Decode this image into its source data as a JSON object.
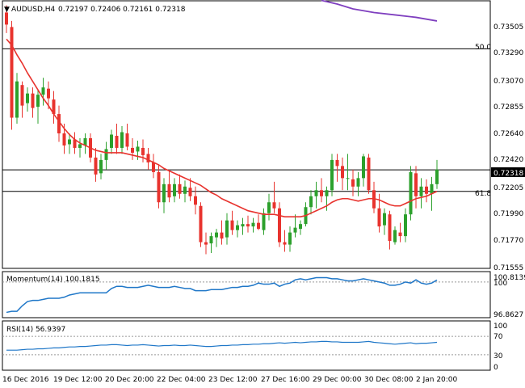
{
  "header": {
    "symbol": "AUDUSD,H4",
    "ohlc": "0.72197 0.72406 0.72161 0.72318"
  },
  "colors": {
    "up": "#2ca02c",
    "down": "#e8332e",
    "ma_short": "#e8332e",
    "ma_long": "#7f3fbf",
    "indicator_line": "#1f77c8",
    "frame": "#000000",
    "grid_dashed": "#999999"
  },
  "price_axis": {
    "labels": [
      "0.73505",
      "0.73290",
      "0.73070",
      "0.72855",
      "0.72640",
      "0.72420",
      "0.72205",
      "0.71990",
      "0.71770",
      "0.71555"
    ],
    "current_price": "0.72318"
  },
  "fib_levels": [
    {
      "label": "50.0",
      "value": 0.7332
    },
    {
      "label": "61.8",
      "value": 0.7214
    }
  ],
  "horizontal_line_value": 0.72318,
  "momentum": {
    "title": "Momentum(14) 100.1815",
    "labels": [
      "100.8139",
      "100",
      "96.8627"
    ],
    "level_100": 100
  },
  "rsi": {
    "title": "RSI(14) 56.9397",
    "labels": [
      "100",
      "70",
      "30",
      "0"
    ]
  },
  "time_axis": {
    "labels": [
      "16 Dec 2016",
      "19 Dec 12:00",
      "20 Dec 20:00",
      "22 Dec 04:00",
      "23 Dec 12:00",
      "27 Dec 16:00",
      "29 Dec 00:00",
      "30 Dec 08:00",
      "2 Jan 20:00"
    ]
  },
  "chart_data": {
    "type": "candlestick",
    "ylim": [
      0.7151,
      0.7371
    ],
    "candles": [
      [
        0.7362,
        0.7368,
        0.7345,
        0.7352
      ],
      [
        0.735,
        0.7355,
        0.7265,
        0.7275
      ],
      [
        0.7275,
        0.7312,
        0.727,
        0.7305
      ],
      [
        0.7302,
        0.7305,
        0.7275,
        0.7285
      ],
      [
        0.7287,
        0.73,
        0.728,
        0.7295
      ],
      [
        0.7295,
        0.73,
        0.7275,
        0.7283
      ],
      [
        0.7284,
        0.7298,
        0.727,
        0.7294
      ],
      [
        0.7294,
        0.7308,
        0.7285,
        0.73
      ],
      [
        0.7299,
        0.7305,
        0.7282,
        0.7291
      ],
      [
        0.729,
        0.7297,
        0.727,
        0.7278
      ],
      [
        0.7278,
        0.7285,
        0.7255,
        0.7262
      ],
      [
        0.7262,
        0.727,
        0.7245,
        0.7252
      ],
      [
        0.7253,
        0.7262,
        0.7245,
        0.7257
      ],
      [
        0.7257,
        0.7263,
        0.7245,
        0.725
      ],
      [
        0.725,
        0.7258,
        0.7242,
        0.7253
      ],
      [
        0.7252,
        0.7262,
        0.7245,
        0.7258
      ],
      [
        0.7258,
        0.7262,
        0.7238,
        0.7242
      ],
      [
        0.7242,
        0.725,
        0.7222,
        0.7228
      ],
      [
        0.7229,
        0.7245,
        0.7224,
        0.724
      ],
      [
        0.724,
        0.7255,
        0.7232,
        0.7249
      ],
      [
        0.725,
        0.7265,
        0.7245,
        0.7261
      ],
      [
        0.726,
        0.727,
        0.7245,
        0.725
      ],
      [
        0.725,
        0.7268,
        0.7245,
        0.7263
      ],
      [
        0.7262,
        0.727,
        0.7248,
        0.7251
      ],
      [
        0.725,
        0.7258,
        0.724,
        0.7246
      ],
      [
        0.7247,
        0.7256,
        0.724,
        0.7251
      ],
      [
        0.725,
        0.7257,
        0.7238,
        0.7244
      ],
      [
        0.7245,
        0.725,
        0.7232,
        0.7238
      ],
      [
        0.7238,
        0.7245,
        0.7225,
        0.723
      ],
      [
        0.723,
        0.7236,
        0.72,
        0.7205
      ],
      [
        0.7205,
        0.7225,
        0.7196,
        0.722
      ],
      [
        0.722,
        0.7232,
        0.7205,
        0.7209
      ],
      [
        0.721,
        0.7225,
        0.7205,
        0.722
      ],
      [
        0.722,
        0.7228,
        0.7208,
        0.7212
      ],
      [
        0.7212,
        0.7223,
        0.7205,
        0.7218
      ],
      [
        0.7217,
        0.7225,
        0.7206,
        0.721
      ],
      [
        0.721,
        0.7218,
        0.7195,
        0.7203
      ],
      [
        0.7202,
        0.7205,
        0.7168,
        0.7172
      ],
      [
        0.7172,
        0.718,
        0.7162,
        0.717
      ],
      [
        0.7171,
        0.718,
        0.7163,
        0.7177
      ],
      [
        0.7176,
        0.7183,
        0.7168,
        0.718
      ],
      [
        0.718,
        0.719,
        0.717,
        0.7175
      ],
      [
        0.7176,
        0.7196,
        0.717,
        0.719
      ],
      [
        0.719,
        0.7198,
        0.7178,
        0.7182
      ],
      [
        0.7182,
        0.719,
        0.7176,
        0.7186
      ],
      [
        0.7185,
        0.7192,
        0.7178,
        0.7187
      ],
      [
        0.7187,
        0.7194,
        0.718,
        0.7185
      ],
      [
        0.7185,
        0.7192,
        0.718,
        0.7188
      ],
      [
        0.7188,
        0.7195,
        0.7182,
        0.7183
      ],
      [
        0.7182,
        0.72,
        0.7178,
        0.7196
      ],
      [
        0.7196,
        0.7212,
        0.719,
        0.7205
      ],
      [
        0.7205,
        0.7222,
        0.7196,
        0.72
      ],
      [
        0.72,
        0.7205,
        0.7168,
        0.7172
      ],
      [
        0.7172,
        0.7182,
        0.7164,
        0.717
      ],
      [
        0.717,
        0.7185,
        0.7164,
        0.718
      ],
      [
        0.718,
        0.7195,
        0.7176,
        0.7184
      ],
      [
        0.7183,
        0.719,
        0.7178,
        0.7187
      ],
      [
        0.7187,
        0.7205,
        0.7185,
        0.7201
      ],
      [
        0.7201,
        0.7215,
        0.7195,
        0.721
      ],
      [
        0.721,
        0.7222,
        0.72,
        0.7215
      ],
      [
        0.7215,
        0.7225,
        0.7205,
        0.721
      ],
      [
        0.721,
        0.7218,
        0.7198,
        0.7215
      ],
      [
        0.7215,
        0.7245,
        0.721,
        0.724
      ],
      [
        0.724,
        0.7245,
        0.7222,
        0.7235
      ],
      [
        0.7235,
        0.7242,
        0.7215,
        0.7225
      ],
      [
        0.7225,
        0.7245,
        0.7215,
        0.7225
      ],
      [
        0.7224,
        0.7232,
        0.721,
        0.7218
      ],
      [
        0.7218,
        0.723,
        0.721,
        0.7225
      ],
      [
        0.7225,
        0.7245,
        0.7218,
        0.7243
      ],
      [
        0.7242,
        0.7245,
        0.7212,
        0.7215
      ],
      [
        0.7215,
        0.7222,
        0.7196,
        0.72
      ],
      [
        0.72,
        0.7212,
        0.718,
        0.7185
      ],
      [
        0.7186,
        0.72,
        0.7178,
        0.7196
      ],
      [
        0.7195,
        0.7198,
        0.7166,
        0.7173
      ],
      [
        0.7172,
        0.7185,
        0.717,
        0.7182
      ],
      [
        0.718,
        0.7188,
        0.7172,
        0.7177
      ],
      [
        0.7177,
        0.72,
        0.7172,
        0.7195
      ],
      [
        0.7195,
        0.7235,
        0.719,
        0.723
      ],
      [
        0.7229,
        0.7235,
        0.72,
        0.721
      ],
      [
        0.721,
        0.7225,
        0.72,
        0.7218
      ],
      [
        0.7218,
        0.7224,
        0.7205,
        0.7212
      ],
      [
        0.7212,
        0.7226,
        0.7198,
        0.722
      ],
      [
        0.722,
        0.724,
        0.7216,
        0.7232
      ]
    ],
    "ma_short": [
      0.734,
      0.7335,
      0.7327,
      0.732,
      0.7312,
      0.7305,
      0.7298,
      0.7291,
      0.7285,
      0.7278,
      0.7272,
      0.7266,
      0.7261,
      0.7257,
      0.7254,
      0.7252,
      0.725,
      0.7248,
      0.7247,
      0.7246,
      0.7246,
      0.7246,
      0.7246,
      0.7245,
      0.7244,
      0.7243,
      0.7242,
      0.724,
      0.7238,
      0.7236,
      0.7233,
      0.7231,
      0.7229,
      0.7227,
      0.7225,
      0.7223,
      0.7221,
      0.7219,
      0.7216,
      0.7213,
      0.7211,
      0.7208,
      0.7206,
      0.7204,
      0.7202,
      0.72,
      0.7198,
      0.7197,
      0.7196,
      0.7195,
      0.7195,
      0.7195,
      0.7194,
      0.7193,
      0.7193,
      0.7193,
      0.7193,
      0.7194,
      0.7196,
      0.7198,
      0.72,
      0.7202,
      0.7205,
      0.7207,
      0.7208,
      0.7208,
      0.7207,
      0.7206,
      0.7207,
      0.7208,
      0.7208,
      0.7207,
      0.7205,
      0.7203,
      0.7202,
      0.7202,
      0.7204,
      0.7206,
      0.7208,
      0.7209,
      0.721,
      0.7212,
      0.7214
    ],
    "ma_long_points": [
      [
        60,
        0.7372
      ],
      [
        63,
        0.7369
      ],
      [
        66,
        0.7365
      ],
      [
        70,
        0.7362
      ],
      [
        74,
        0.736
      ],
      [
        78,
        0.7358
      ],
      [
        82,
        0.7355
      ]
    ],
    "momentum": [
      97.2,
      97.3,
      97.3,
      97.8,
      98.2,
      98.3,
      98.3,
      98.4,
      98.5,
      98.5,
      98.5,
      98.6,
      98.8,
      98.9,
      99.0,
      99.0,
      99.0,
      99.0,
      99.0,
      99.0,
      99.4,
      99.6,
      99.6,
      99.5,
      99.5,
      99.5,
      99.6,
      99.7,
      99.6,
      99.5,
      99.5,
      99.5,
      99.6,
      99.5,
      99.4,
      99.4,
      99.2,
      99.2,
      99.2,
      99.3,
      99.3,
      99.3,
      99.4,
      99.5,
      99.5,
      99.6,
      99.6,
      99.7,
      99.9,
      99.8,
      99.8,
      99.9,
      99.6,
      99.8,
      99.9,
      100.2,
      100.3,
      100.2,
      100.3,
      100.4,
      100.4,
      100.4,
      100.3,
      100.3,
      100.2,
      100.1,
      100.1,
      100.2,
      100.3,
      100.2,
      100.1,
      100.0,
      99.9,
      99.7,
      99.7,
      99.8,
      100.0,
      99.9,
      100.2,
      99.9,
      99.8,
      99.9,
      100.18
    ],
    "rsi": [
      40,
      40,
      40,
      41,
      42,
      42,
      43,
      43,
      44,
      45,
      45,
      46,
      47,
      47,
      48,
      48,
      49,
      50,
      51,
      51,
      52,
      52,
      51,
      50,
      51,
      51,
      52,
      51,
      50,
      49,
      50,
      50,
      51,
      50,
      50,
      51,
      50,
      49,
      48,
      48,
      49,
      50,
      50,
      51,
      51,
      52,
      52,
      53,
      53,
      54,
      54,
      55,
      56,
      55,
      56,
      57,
      56,
      57,
      58,
      58,
      59,
      59,
      58,
      58,
      57,
      57,
      57,
      57,
      58,
      59,
      57,
      56,
      55,
      54,
      53,
      54,
      55,
      56,
      54,
      55,
      55,
      56,
      57
    ]
  }
}
